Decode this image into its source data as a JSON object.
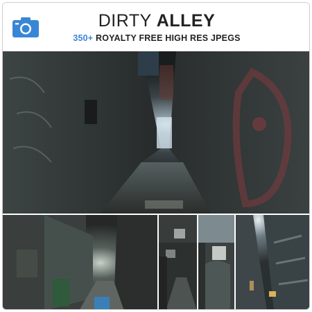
{
  "header": {
    "title_light": "DIRTY",
    "title_bold": "ALLEY",
    "subtitle_count": "350+",
    "subtitle_rest": "ROYALTY FREE HIGH RES JPEGS"
  },
  "icons": {
    "brand": "camera-icon"
  },
  "colors": {
    "accent": "#3a86d6",
    "text": "#222222"
  }
}
